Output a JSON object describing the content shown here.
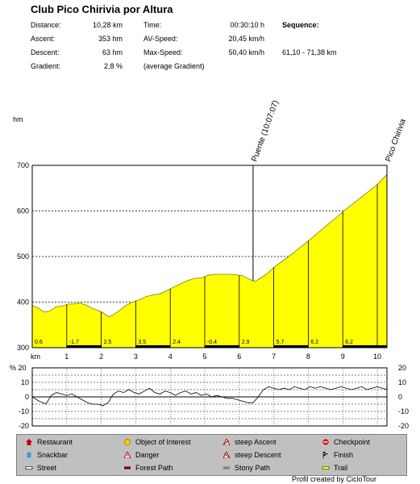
{
  "title": "Club Pico Chirivia por Altura",
  "stats": {
    "distance_label": "Distance:",
    "distance_value": "10,28 km",
    "ascent_label": "Ascent:",
    "ascent_value": "353 hm",
    "descent_label": "Descent:",
    "descent_value": "63 hm",
    "gradient_label": "Gradient:",
    "gradient_value": "2,8 %",
    "time_label": "Time:",
    "time_value": "00:30:10 h",
    "avspeed_label": "AV-Speed:",
    "avspeed_value": "20,45 km/h",
    "maxspeed_label": "Max-Speed:",
    "maxspeed_value": "50,40 km/h",
    "avg_gradient_note": "(average Gradient)",
    "sequence_label": "Sequence:",
    "sequence_value": "61,10 - 71,38 km"
  },
  "colors": {
    "profile_fill": "#ffff00",
    "profile_stroke": "#808000",
    "legend_bg": "#c0c0c0",
    "line": "#000000"
  },
  "chart_data": [
    {
      "type": "area",
      "ylabel": "hm",
      "xlabel": "km",
      "ylim": [
        300,
        700
      ],
      "xlim": [
        0,
        10.28
      ],
      "yticks": [
        300,
        400,
        500,
        600,
        700
      ],
      "xticks": [
        1,
        2,
        3,
        4,
        5,
        6,
        7,
        8,
        9,
        10
      ],
      "grid": true,
      "x": [
        0,
        0.15,
        0.35,
        0.5,
        0.7,
        0.9,
        1.05,
        1.2,
        1.4,
        1.6,
        1.75,
        1.9,
        2.05,
        2.2,
        2.3,
        2.5,
        2.7,
        2.9,
        3.1,
        3.3,
        3.5,
        3.7,
        3.9,
        4.1,
        4.3,
        4.5,
        4.7,
        4.9,
        5.1,
        5.3,
        5.5,
        5.7,
        5.9,
        6.1,
        6.3,
        6.45,
        6.6,
        6.8,
        7.0,
        7.3,
        7.6,
        7.9,
        8.2,
        8.5,
        8.8,
        9.1,
        9.4,
        9.7,
        10.0,
        10.28
      ],
      "y": [
        392,
        388,
        378,
        380,
        390,
        392,
        396,
        396,
        398,
        392,
        386,
        382,
        377,
        368,
        370,
        380,
        392,
        400,
        405,
        412,
        416,
        418,
        425,
        433,
        440,
        447,
        452,
        453,
        459,
        461,
        461,
        461,
        460,
        458,
        450,
        445,
        452,
        462,
        476,
        493,
        510,
        528,
        547,
        566,
        585,
        604,
        622,
        640,
        658,
        680
      ],
      "segment_boundaries": [
        1,
        2,
        3,
        4,
        5,
        6,
        7,
        8,
        9,
        10
      ],
      "segment_labels": [
        "0.6",
        "-1.7",
        "2.5",
        "3.5",
        "2.4",
        "-0.4",
        "2.9",
        "5.7",
        "6.2",
        "6.2"
      ],
      "annotations": [
        {
          "x": 6.4,
          "label": "Puente (10:07:07)"
        },
        {
          "x": 10.28,
          "label": "Pico Chirivia"
        }
      ]
    },
    {
      "type": "line",
      "ylabel": "%",
      "ylim": [
        -20,
        20
      ],
      "yticks": [
        -20,
        -15,
        -10,
        -5,
        0,
        5,
        10,
        15,
        20
      ],
      "ytick_labels_left": [
        "-20",
        "-10",
        "0",
        "10",
        "20"
      ],
      "ytick_labels_right": [
        "-20",
        "-10",
        "0",
        "10",
        "20"
      ],
      "grid": true,
      "x": [
        0,
        0.2,
        0.4,
        0.55,
        0.7,
        0.85,
        1.0,
        1.15,
        1.3,
        1.45,
        1.6,
        1.75,
        1.9,
        2.05,
        2.2,
        2.35,
        2.5,
        2.65,
        2.8,
        2.95,
        3.1,
        3.25,
        3.4,
        3.55,
        3.7,
        3.85,
        4.0,
        4.15,
        4.3,
        4.45,
        4.6,
        4.75,
        4.9,
        5.05,
        5.2,
        5.35,
        5.5,
        5.65,
        5.8,
        5.95,
        6.1,
        6.25,
        6.4,
        6.55,
        6.7,
        6.85,
        7.0,
        7.15,
        7.3,
        7.45,
        7.6,
        7.75,
        7.9,
        8.05,
        8.2,
        8.35,
        8.5,
        8.65,
        8.8,
        8.95,
        9.1,
        9.25,
        9.4,
        9.55,
        9.7,
        9.85,
        10.0,
        10.15,
        10.28
      ],
      "y": [
        0,
        -3,
        -5,
        1,
        3,
        2,
        1,
        2,
        0,
        -2,
        -4,
        -5,
        -5,
        -6,
        -4,
        2,
        4,
        3,
        5,
        3,
        2,
        4,
        6,
        3,
        2,
        4,
        3,
        1,
        3,
        4,
        2,
        3,
        1,
        2,
        0,
        1,
        0,
        -1,
        -1,
        -2,
        -3,
        -4,
        -4,
        0,
        5,
        7,
        6,
        5,
        6,
        5,
        7,
        6,
        5,
        7,
        6,
        7,
        6,
        5,
        6,
        7,
        6,
        5,
        6,
        7,
        5,
        6,
        7,
        6,
        5
      ]
    }
  ],
  "axis": {
    "elev_unit": "hm",
    "km_label": "km",
    "pct_label": "% 20"
  },
  "legend": {
    "restaurant": "Restaurant",
    "snackbar": "Snackbar",
    "street": "Street",
    "object_of_interest": "Object of Interest",
    "danger": "Danger",
    "forest_path": "Forest Path",
    "steep_ascent": "steep Ascent",
    "steep_descent": "steep Descent",
    "stony_path": "Stony Path",
    "checkpoint": "Checkpoint",
    "finish": "Finish",
    "trail": "Trail"
  },
  "footer": "Profil created by CicloTour"
}
